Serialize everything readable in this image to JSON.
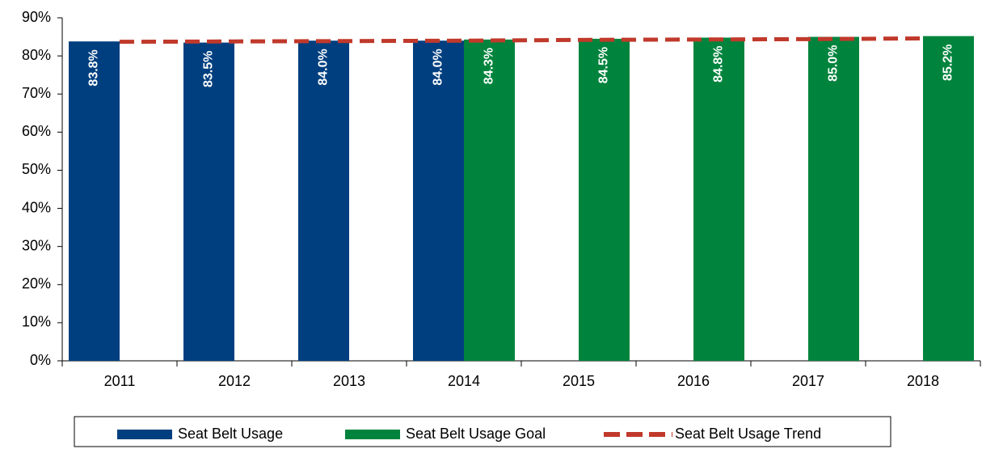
{
  "chart_data": {
    "type": "bar",
    "categories": [
      "2011",
      "2012",
      "2013",
      "2014",
      "2015",
      "2016",
      "2017",
      "2018"
    ],
    "series": [
      {
        "name": "Seat Belt Usage",
        "color": "#003f7f",
        "values": [
          83.8,
          83.5,
          84.0,
          84.0,
          null,
          null,
          null,
          null
        ],
        "value_labels": [
          "83.8%",
          "83.5%",
          "84.0%",
          "84.0%",
          null,
          null,
          null,
          null
        ]
      },
      {
        "name": "Seat Belt Usage Goal",
        "color": "#00843d",
        "values": [
          null,
          null,
          null,
          84.3,
          84.5,
          84.8,
          85.0,
          85.2
        ],
        "value_labels": [
          null,
          null,
          null,
          "84.3%",
          "84.5%",
          "84.8%",
          "85.0%",
          "85.2%"
        ]
      },
      {
        "name": "Seat Belt Usage Trend",
        "color": "#c0392b",
        "type": "line",
        "dashed": true,
        "values": [
          83.7,
          83.8,
          83.9,
          84.0,
          84.2,
          84.3,
          84.4,
          84.6
        ]
      }
    ],
    "ylim": [
      0,
      90
    ],
    "yticks": [
      {
        "value": 0,
        "label": "0%"
      },
      {
        "value": 10,
        "label": "10%"
      },
      {
        "value": 20,
        "label": "20%"
      },
      {
        "value": 30,
        "label": "30%"
      },
      {
        "value": 40,
        "label": "40%"
      },
      {
        "value": 50,
        "label": "50%"
      },
      {
        "value": 60,
        "label": "60%"
      },
      {
        "value": 70,
        "label": "70%"
      },
      {
        "value": 80,
        "label": "80%"
      },
      {
        "value": 90,
        "label": "90%"
      }
    ],
    "grid": false,
    "legend": "bottom"
  }
}
